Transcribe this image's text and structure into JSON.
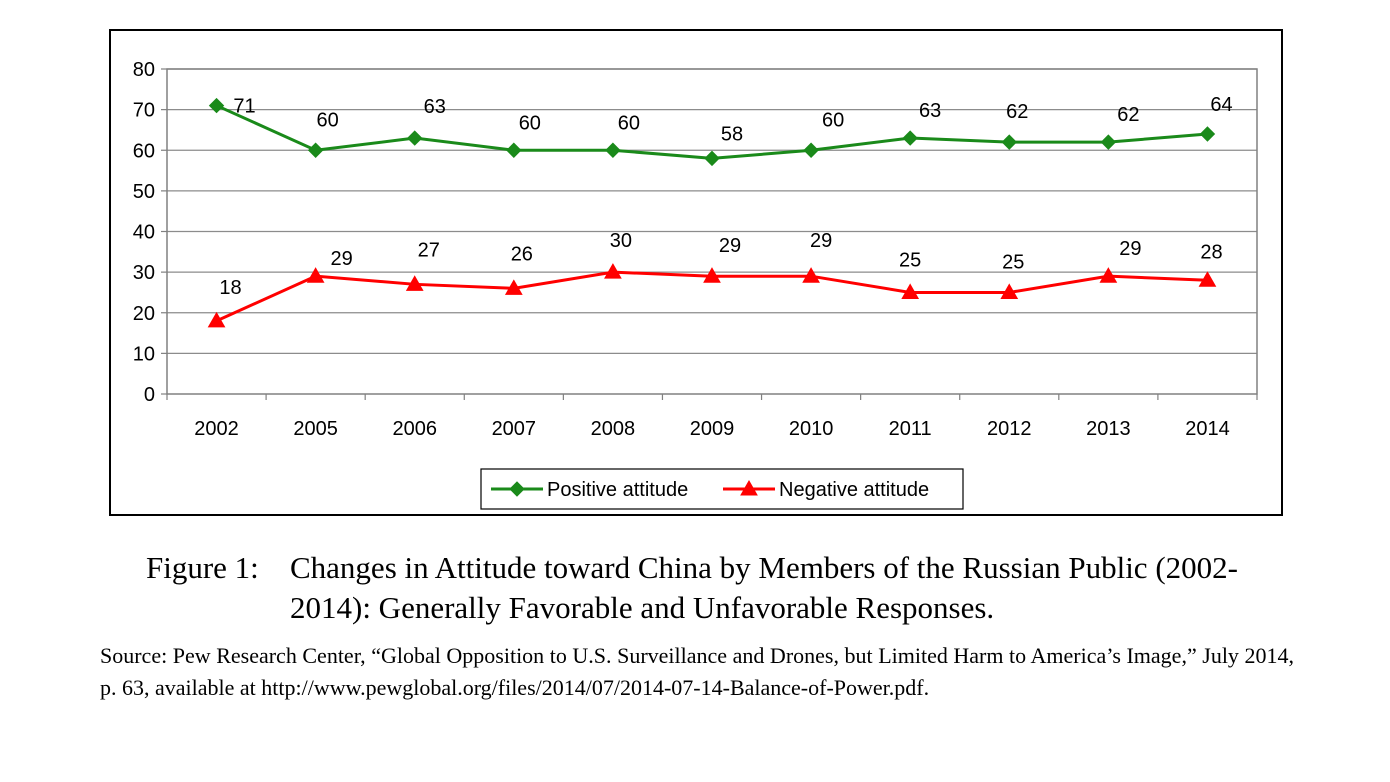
{
  "chart_data": {
    "type": "line",
    "categories": [
      "2002",
      "2005",
      "2006",
      "2007",
      "2008",
      "2009",
      "2010",
      "2011",
      "2012",
      "2013",
      "2014"
    ],
    "series": [
      {
        "name": "Positive attitude",
        "color": "#1a8a1a",
        "marker": "diamond",
        "values": [
          71,
          60,
          63,
          60,
          60,
          58,
          60,
          63,
          62,
          62,
          64
        ]
      },
      {
        "name": "Negative attitude",
        "color": "#ff0000",
        "marker": "triangle",
        "values": [
          18,
          29,
          27,
          26,
          30,
          29,
          29,
          25,
          25,
          29,
          28
        ]
      }
    ],
    "ylim": [
      0,
      80
    ],
    "yticks": [
      0,
      10,
      20,
      30,
      40,
      50,
      60,
      70,
      80
    ],
    "grid": true,
    "legend": "bottom-center"
  },
  "caption": {
    "label": "Figure 1:",
    "text": "Changes in Attitude toward China by Members of the Russian Public (2002-2014): Generally Favorable and Unfavorable Responses."
  },
  "source": "Source: Pew Research Center, “Global Opposition to U.S. Surveillance and Drones, but Limited Harm to America’s Image,” July 2014, p. 63, available at http://www.pewglobal.org/files/2014/07/2014-07-14-Balance-of-Power.pdf."
}
